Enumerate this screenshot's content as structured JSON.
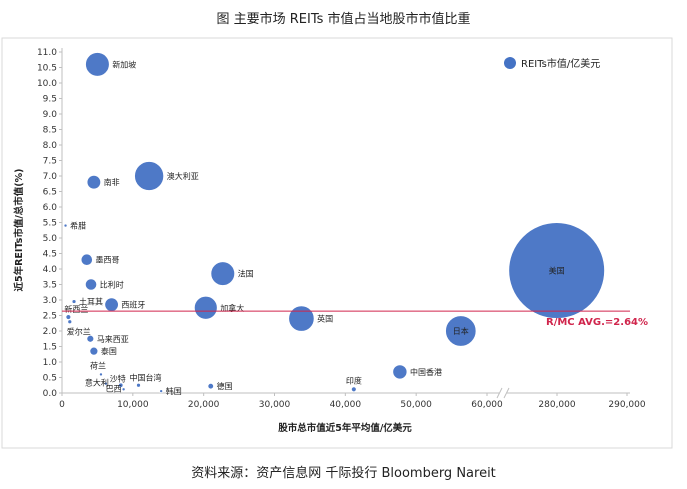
{
  "page": {
    "title": "图 主要市场 REITs 市值占当地股市市值比重",
    "footer": "资料来源：资产信息网 千际投行 Bloomberg Nareit"
  },
  "chart_data": {
    "type": "scatter",
    "title": "图 主要市场 REITs 市值占当地股市市值比重",
    "xlabel": "股市总市值近5年平均值/亿美元",
    "ylabel": "近5年REITs市值/总市值(%)",
    "xlim": [
      0,
      290000
    ],
    "ylim": [
      0,
      11.0
    ],
    "x_break": [
      60000,
      270000
    ],
    "xticks": [
      "0",
      "10,000",
      "20,000",
      "30,000",
      "40,000",
      "50,000",
      "60,000",
      "280,000",
      "290,000"
    ],
    "yticks": [
      "0.0",
      "0.5",
      "1.0",
      "1.5",
      "2.0",
      "2.5",
      "3.0",
      "3.5",
      "4.0",
      "4.5",
      "5.0",
      "5.5",
      "6.0",
      "6.5",
      "7.0",
      "7.5",
      "8.0",
      "8.5",
      "9.0",
      "9.5",
      "10.0",
      "10.5",
      "11.0"
    ],
    "legend": {
      "label": "REITs市值/亿美元",
      "position": "top-right"
    },
    "average_line": {
      "value": 2.64,
      "label": "R/MC AVG.=2.64%",
      "color": "#d0254c"
    },
    "bubble_color": "#4472c4",
    "series": [
      {
        "name": "REITs市值/亿美元",
        "points": [
          {
            "label": "新加坡",
            "x": 5000,
            "y": 10.6,
            "size": 700
          },
          {
            "label": "南非",
            "x": 4500,
            "y": 6.8,
            "size": 230
          },
          {
            "label": "澳大利亚",
            "x": 12300,
            "y": 7.0,
            "size": 1050
          },
          {
            "label": "希腊",
            "x": 500,
            "y": 5.4,
            "size": 8
          },
          {
            "label": "墨西哥",
            "x": 3500,
            "y": 4.3,
            "size": 160
          },
          {
            "label": "法国",
            "x": 22700,
            "y": 3.85,
            "size": 700
          },
          {
            "label": "比利时",
            "x": 4100,
            "y": 3.5,
            "size": 160
          },
          {
            "label": "土耳其",
            "x": 1700,
            "y": 2.95,
            "size": 20
          },
          {
            "label": "西班牙",
            "x": 7000,
            "y": 2.85,
            "size": 230
          },
          {
            "label": "加拿大",
            "x": 20300,
            "y": 2.75,
            "size": 650
          },
          {
            "label": "美国",
            "x": 279000,
            "y": 3.95,
            "size": 11500
          },
          {
            "label": "新西兰",
            "x": 900,
            "y": 2.45,
            "size": 30
          },
          {
            "label": "英国",
            "x": 33800,
            "y": 2.4,
            "size": 800
          },
          {
            "label": "日本",
            "x": 56300,
            "y": 2.0,
            "size": 1150
          },
          {
            "label": "爱尔兰",
            "x": 1100,
            "y": 2.3,
            "size": 20
          },
          {
            "label": "马来西亚",
            "x": 4000,
            "y": 1.75,
            "size": 60
          },
          {
            "label": "泰国",
            "x": 4500,
            "y": 1.35,
            "size": 80
          },
          {
            "label": "中国香港",
            "x": 47700,
            "y": 0.68,
            "size": 250
          },
          {
            "label": "荷兰",
            "x": 5500,
            "y": 0.6,
            "size": 10
          },
          {
            "label": "意大利",
            "x": 6200,
            "y": 0.3,
            "size": 10
          },
          {
            "label": "沙特",
            "x": 8300,
            "y": 0.25,
            "size": 25
          },
          {
            "label": "中国台湾",
            "x": 10800,
            "y": 0.25,
            "size": 20
          },
          {
            "label": "巴西",
            "x": 8700,
            "y": 0.12,
            "size": 5
          },
          {
            "label": "德国",
            "x": 21000,
            "y": 0.22,
            "size": 40
          },
          {
            "label": "韩国",
            "x": 14000,
            "y": 0.06,
            "size": 12
          },
          {
            "label": "印度",
            "x": 41200,
            "y": 0.12,
            "size": 30
          }
        ]
      }
    ]
  }
}
